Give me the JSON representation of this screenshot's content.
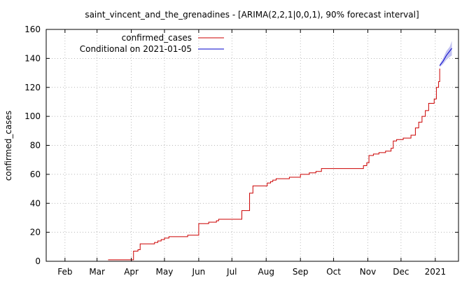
{
  "chart_data": {
    "type": "line",
    "title": "saint_vincent_and_the_grenadines -  [ARIMA(2,2,1|0,0,1), 90% forecast interval]",
    "xlabel": "",
    "ylabel": "confirmed_cases",
    "x_type": "date",
    "xlim": [
      "2021-01-15",
      "2021-01-05"
    ],
    "xlim_note": "",
    "x_range": [
      "2020-01-15",
      "2021-01-22"
    ],
    "ylim": [
      0,
      160
    ],
    "yticks": [
      0,
      20,
      40,
      60,
      80,
      100,
      120,
      140,
      160
    ],
    "xticks": [
      {
        "date": "2020-02-01",
        "label": "Feb"
      },
      {
        "date": "2020-03-01",
        "label": "Mar"
      },
      {
        "date": "2020-04-01",
        "label": "Apr"
      },
      {
        "date": "2020-05-01",
        "label": "May"
      },
      {
        "date": "2020-06-01",
        "label": "Jun"
      },
      {
        "date": "2020-07-01",
        "label": "Jul"
      },
      {
        "date": "2020-08-01",
        "label": "Aug"
      },
      {
        "date": "2020-09-01",
        "label": "Sep"
      },
      {
        "date": "2020-10-01",
        "label": "Oct"
      },
      {
        "date": "2020-11-01",
        "label": "Nov"
      },
      {
        "date": "2020-12-01",
        "label": "Dec"
      },
      {
        "date": "2021-01-01",
        "label": "2021"
      }
    ],
    "grid": true,
    "legend_position": "top-left",
    "series": [
      {
        "name": "confirmed_cases",
        "color": "#cc0000",
        "step": true,
        "points": [
          [
            "2020-03-11",
            1
          ],
          [
            "2020-04-01",
            1
          ],
          [
            "2020-04-03",
            7
          ],
          [
            "2020-04-07",
            8
          ],
          [
            "2020-04-09",
            12
          ],
          [
            "2020-04-20",
            12
          ],
          [
            "2020-04-22",
            13
          ],
          [
            "2020-04-25",
            14
          ],
          [
            "2020-04-28",
            15
          ],
          [
            "2020-05-01",
            16
          ],
          [
            "2020-05-05",
            17
          ],
          [
            "2020-05-20",
            17
          ],
          [
            "2020-05-22",
            18
          ],
          [
            "2020-05-29",
            18
          ],
          [
            "2020-06-01",
            26
          ],
          [
            "2020-06-08",
            26
          ],
          [
            "2020-06-10",
            27
          ],
          [
            "2020-06-17",
            28
          ],
          [
            "2020-06-19",
            29
          ],
          [
            "2020-07-08",
            29
          ],
          [
            "2020-07-10",
            35
          ],
          [
            "2020-07-15",
            35
          ],
          [
            "2020-07-17",
            47
          ],
          [
            "2020-07-20",
            52
          ],
          [
            "2020-07-31",
            52
          ],
          [
            "2020-08-02",
            54
          ],
          [
            "2020-08-05",
            55
          ],
          [
            "2020-08-07",
            56
          ],
          [
            "2020-08-10",
            57
          ],
          [
            "2020-08-20",
            57
          ],
          [
            "2020-08-22",
            58
          ],
          [
            "2020-08-30",
            58
          ],
          [
            "2020-09-01",
            60
          ],
          [
            "2020-09-07",
            60
          ],
          [
            "2020-09-09",
            61
          ],
          [
            "2020-09-15",
            62
          ],
          [
            "2020-09-20",
            64
          ],
          [
            "2020-10-25",
            64
          ],
          [
            "2020-10-28",
            66
          ],
          [
            "2020-10-31",
            68
          ],
          [
            "2020-11-02",
            73
          ],
          [
            "2020-11-06",
            74
          ],
          [
            "2020-11-11",
            75
          ],
          [
            "2020-11-17",
            76
          ],
          [
            "2020-11-22",
            78
          ],
          [
            "2020-11-24",
            83
          ],
          [
            "2020-11-27",
            84
          ],
          [
            "2020-12-03",
            85
          ],
          [
            "2020-12-10",
            87
          ],
          [
            "2020-12-14",
            92
          ],
          [
            "2020-12-17",
            96
          ],
          [
            "2020-12-20",
            100
          ],
          [
            "2020-12-23",
            104
          ],
          [
            "2020-12-26",
            109
          ],
          [
            "2020-12-31",
            112
          ],
          [
            "2021-01-02",
            120
          ],
          [
            "2021-01-04",
            124
          ],
          [
            "2021-01-05",
            133
          ]
        ]
      },
      {
        "name": "Conditional on 2021-01-05",
        "color": "#0000cc",
        "band_color": "#b4b4ee",
        "points": [
          [
            "2021-01-05",
            135
          ],
          [
            "2021-01-08",
            138
          ],
          [
            "2021-01-11",
            142
          ],
          [
            "2021-01-14",
            145
          ],
          [
            "2021-01-16",
            147
          ]
        ],
        "interval_90": {
          "lower": [
            134,
            136,
            139,
            141,
            142
          ],
          "upper": [
            136,
            140,
            145,
            148,
            152
          ]
        }
      }
    ]
  }
}
